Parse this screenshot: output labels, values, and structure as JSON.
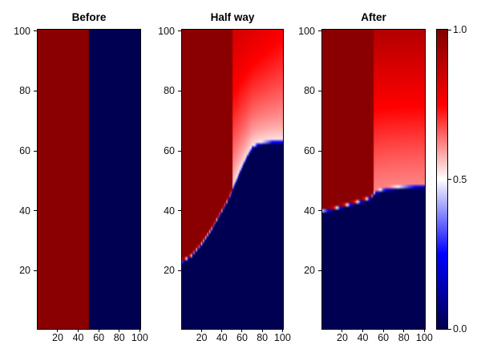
{
  "chart_data": {
    "type": "heatmap",
    "title": "",
    "value_range": [
      0.0,
      1.0
    ],
    "axis": {
      "xlim": [
        0.5,
        100.5
      ],
      "ylim": [
        0.5,
        100.5
      ],
      "grid": false
    },
    "colors": {
      "background": "#ffffff",
      "axis_color": "#000000",
      "text_color": "#111111",
      "dark_red_max": "#800000",
      "navy_min": "#00004c"
    },
    "colormap": {
      "name": "seismic",
      "stops": [
        [
          0.0,
          "#00004c"
        ],
        [
          0.25,
          "#0000ff"
        ],
        [
          0.5,
          "#ffffff"
        ],
        [
          0.75,
          "#ff0000"
        ],
        [
          1.0,
          "#800000"
        ]
      ]
    },
    "panels": [
      {
        "title": "Before",
        "x_ticks": {
          "values": [
            20,
            40,
            60,
            80,
            100
          ],
          "labels": [
            "20",
            "40",
            "60",
            "80",
            "100"
          ]
        },
        "y_ticks": {
          "values": [
            20,
            40,
            60,
            80,
            100
          ],
          "labels": [
            "20",
            "40",
            "60",
            "80",
            "100"
          ]
        },
        "field": {
          "mode": "split",
          "divide_x": 50,
          "left_value": 0.98,
          "right_value": 0.01
        }
      },
      {
        "title": "Half way",
        "x_ticks": {
          "values": [
            20,
            40,
            60,
            80,
            100
          ],
          "labels": [
            "20",
            "40",
            "60",
            "80",
            "100"
          ]
        },
        "y_ticks": {
          "values": [
            20,
            40,
            60,
            80,
            100
          ],
          "labels": [
            "20",
            "40",
            "60",
            "80",
            "100"
          ]
        },
        "field": {
          "mode": "front",
          "divide_x": 50,
          "left_value": 0.98,
          "below_value": 0.01,
          "right_base": 0.5,
          "right_top_divide": 0.84,
          "right_top_edge": 0.76,
          "h_exponent": 0.6,
          "edge_softness": 0.85,
          "boundary": [
            [
              0,
              23
            ],
            [
              10,
              25
            ],
            [
              20,
              29
            ],
            [
              30,
              34
            ],
            [
              40,
              40
            ],
            [
              45,
              43
            ],
            [
              50,
              46.5
            ],
            [
              55,
              50.5
            ],
            [
              60,
              54.5
            ],
            [
              65,
              58
            ],
            [
              70,
              61
            ],
            [
              75,
              62
            ],
            [
              80,
              62.5
            ],
            [
              90,
              63
            ],
            [
              100,
              63
            ]
          ]
        }
      },
      {
        "title": "After",
        "x_ticks": {
          "values": [
            20,
            40,
            60,
            80,
            100
          ],
          "labels": [
            "20",
            "40",
            "60",
            "80",
            "100"
          ]
        },
        "y_ticks": {
          "values": [
            20,
            40,
            60,
            80,
            100
          ],
          "labels": [
            "20",
            "40",
            "60",
            "80",
            "100"
          ]
        },
        "field": {
          "mode": "front",
          "divide_x": 50,
          "left_value": 0.98,
          "below_value": 0.01,
          "right_base": 0.62,
          "right_top_divide": 0.9,
          "right_top_edge": 0.9,
          "h_exponent": 1.15,
          "edge_softness": 0.85,
          "boundary": [
            [
              0,
              40
            ],
            [
              10,
              40.5
            ],
            [
              20,
              41.5
            ],
            [
              30,
              42.5
            ],
            [
              40,
              43.5
            ],
            [
              48,
              44.5
            ],
            [
              52,
              46
            ],
            [
              60,
              47
            ],
            [
              70,
              47.5
            ],
            [
              85,
              48
            ],
            [
              100,
              48.3
            ]
          ]
        }
      }
    ],
    "colorbar": {
      "ticks": {
        "values": [
          1.0,
          0.5,
          0.0
        ],
        "labels": [
          "1.0",
          "0.5",
          "0.0"
        ]
      }
    }
  }
}
